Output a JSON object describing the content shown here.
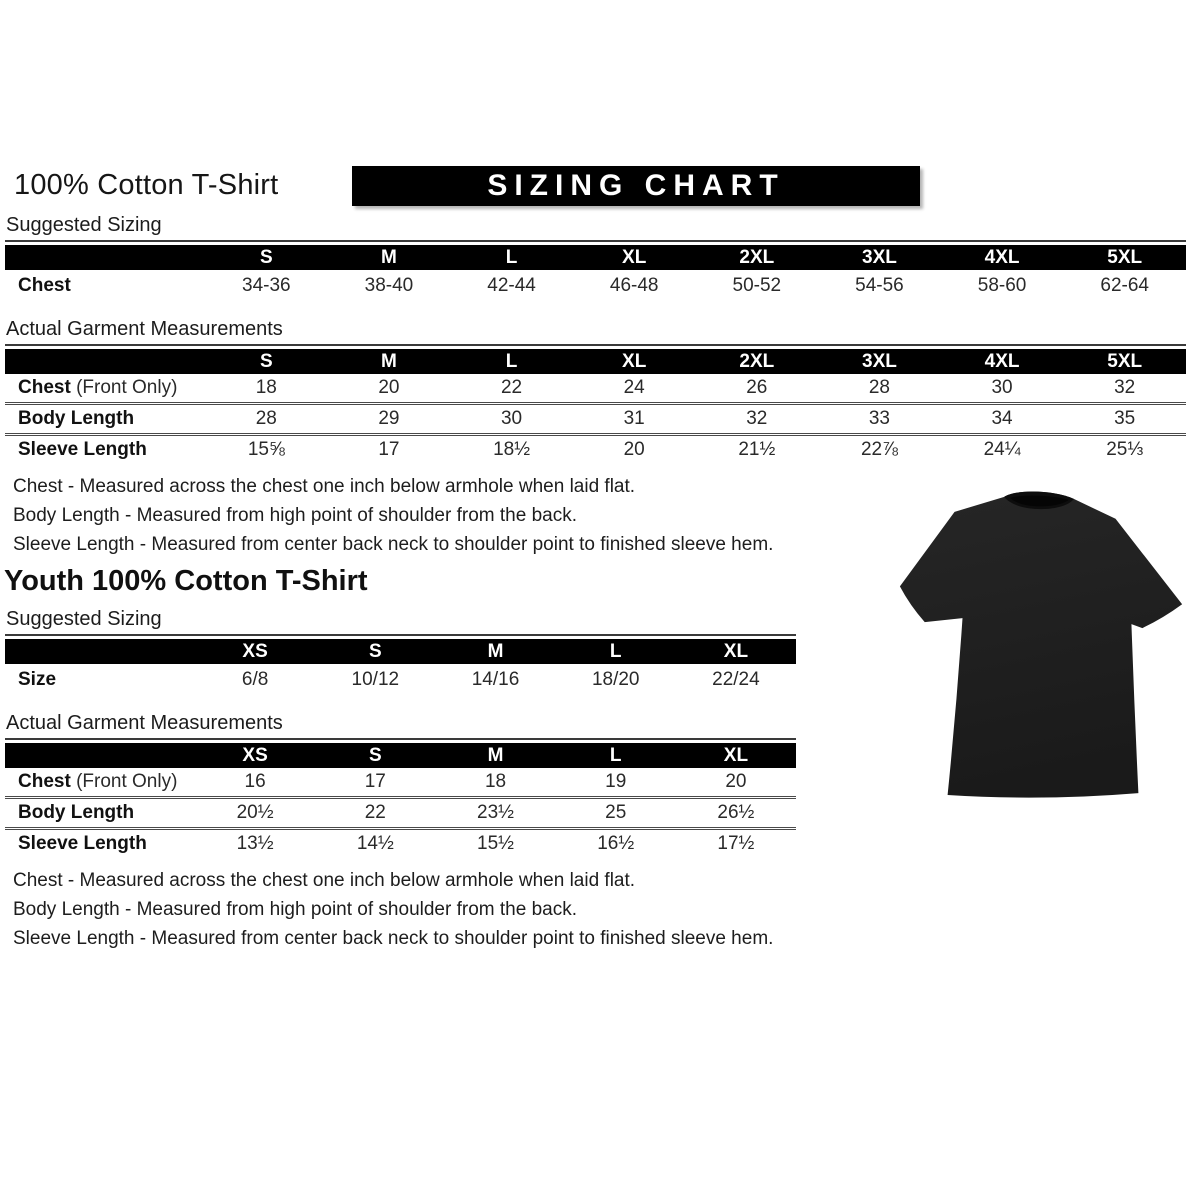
{
  "page": {
    "title": "100% Cotton T-Shirt",
    "banner": "SIZING CHART"
  },
  "adult": {
    "suggested": {
      "section_label": "Suggested Sizing",
      "columns": [
        "S",
        "M",
        "L",
        "XL",
        "2XL",
        "3XL",
        "4XL",
        "5XL"
      ],
      "rows": [
        {
          "label": "Chest",
          "suffix": "",
          "values": [
            "34-36",
            "38-40",
            "42-44",
            "46-48",
            "50-52",
            "54-56",
            "58-60",
            "62-64"
          ]
        }
      ]
    },
    "garment": {
      "section_label": "Actual Garment Measurements",
      "columns": [
        "S",
        "M",
        "L",
        "XL",
        "2XL",
        "3XL",
        "4XL",
        "5XL"
      ],
      "rows": [
        {
          "label": "Chest",
          "suffix": " (Front Only)",
          "values": [
            "18",
            "20",
            "22",
            "24",
            "26",
            "28",
            "30",
            "32"
          ]
        },
        {
          "label": "Body Length",
          "suffix": "",
          "values": [
            "28",
            "29",
            "30",
            "31",
            "32",
            "33",
            "34",
            "35"
          ]
        },
        {
          "label": "Sleeve Length",
          "suffix": "",
          "values": [
            "15⅝",
            "17",
            "18½",
            "20",
            "21½",
            "22⅞",
            "24¼",
            "25⅓"
          ]
        }
      ]
    },
    "notes": [
      "Chest - Measured across the chest one inch below armhole when laid flat.",
      "Body Length - Measured from high point of shoulder from the back.",
      "Sleeve Length - Measured from center back neck to shoulder point to finished sleeve hem."
    ]
  },
  "youth": {
    "title": "Youth 100% Cotton T-Shirt",
    "suggested": {
      "section_label": "Suggested Sizing",
      "columns": [
        "XS",
        "S",
        "M",
        "L",
        "XL"
      ],
      "rows": [
        {
          "label": "Size",
          "suffix": "",
          "values": [
            "6/8",
            "10/12",
            "14/16",
            "18/20",
            "22/24"
          ]
        }
      ]
    },
    "garment": {
      "section_label": "Actual Garment Measurements",
      "columns": [
        "XS",
        "S",
        "M",
        "L",
        "XL"
      ],
      "rows": [
        {
          "label": "Chest",
          "suffix": " (Front Only)",
          "values": [
            "16",
            "17",
            "18",
            "19",
            "20"
          ]
        },
        {
          "label": "Body Length",
          "suffix": "",
          "values": [
            "20½",
            "22",
            "23½",
            "25",
            "26½"
          ]
        },
        {
          "label": "Sleeve Length",
          "suffix": "",
          "values": [
            "13½",
            "14½",
            "15½",
            "16½",
            "17½"
          ]
        }
      ]
    },
    "notes": [
      "Chest - Measured across the chest one inch below armhole when laid flat.",
      "Body Length - Measured from high point of shoulder from the back.",
      "Sleeve Length - Measured from center back neck to shoulder point to finished sleeve hem."
    ]
  },
  "tshirt": {
    "color_top": "#262626",
    "color_bottom": "#1a1a1a",
    "collar_color": "#0d0d0d"
  }
}
